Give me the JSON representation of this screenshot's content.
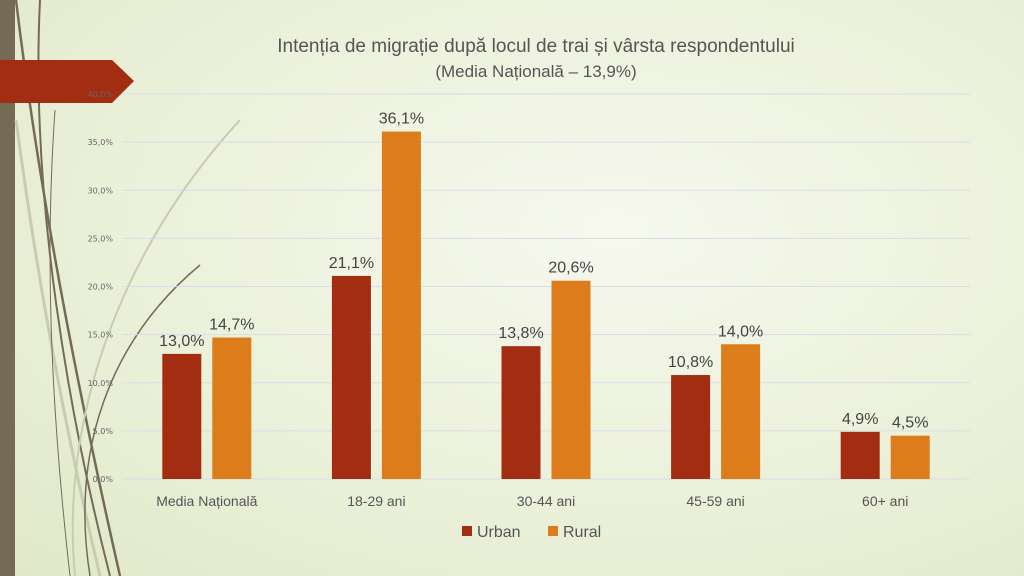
{
  "chart_data": {
    "type": "bar",
    "title": "Intenția de migrație după locul de trai și vârsta respondentului",
    "subtitle": "(Media Națională – 13,9%)",
    "categories": [
      "Media Națională",
      "18-29 ani",
      "30-44 ani",
      "45-59 ani",
      "60+ ani"
    ],
    "series": [
      {
        "name": "Urban",
        "color": "#a32d10",
        "values": [
          13.0,
          21.1,
          13.8,
          10.8,
          4.9
        ],
        "labels": [
          "13,0%",
          "21,1%",
          "13,8%",
          "10,8%",
          "4,9%"
        ]
      },
      {
        "name": "Rural",
        "color": "#dd7c1b",
        "values": [
          14.7,
          36.1,
          20.6,
          14.0,
          4.5
        ],
        "labels": [
          "14,7%",
          "36,1%",
          "20,6%",
          "14,0%",
          "4,5%"
        ]
      }
    ],
    "ylim": [
      0,
      40
    ],
    "yticks": [
      0,
      5,
      10,
      15,
      20,
      25,
      30,
      35,
      40
    ],
    "ytick_labels": [
      "0,0%",
      "5,0%",
      "10,0%",
      "15,0%",
      "20,0%",
      "25,0%",
      "30,0%",
      "35,0%",
      "40,0%"
    ],
    "grid": true,
    "legend": "bottom"
  }
}
